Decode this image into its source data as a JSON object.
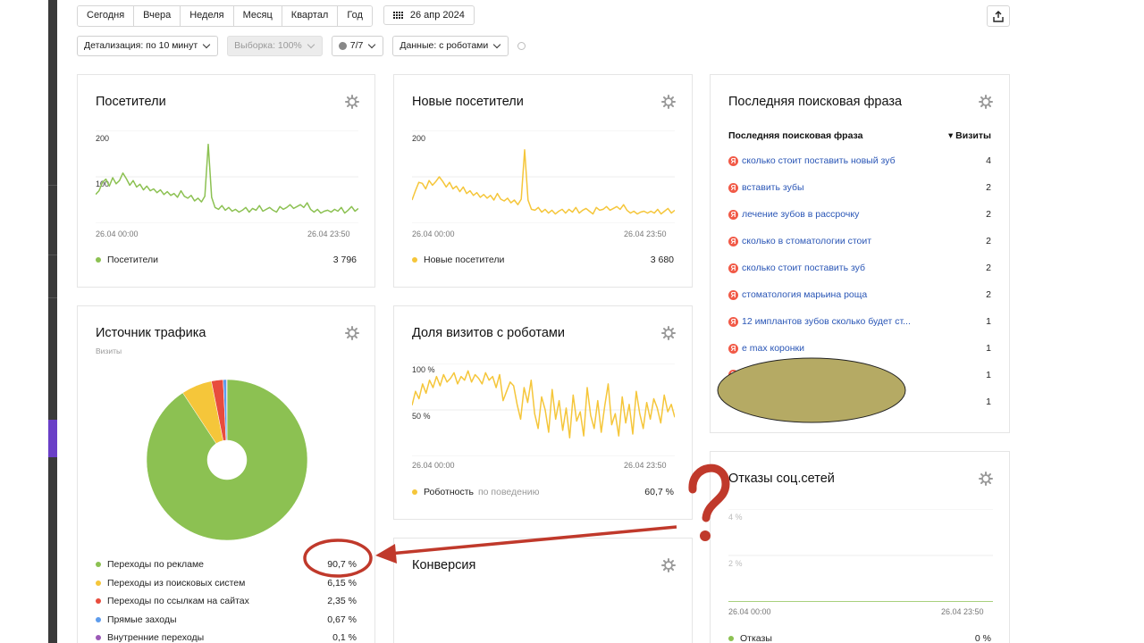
{
  "toolbar": {
    "periods": [
      "Сегодня",
      "Вчера",
      "Неделя",
      "Месяц",
      "Квартал",
      "Год"
    ],
    "date": "26 апр 2024"
  },
  "filters": {
    "detail": "Детализация: по 10 минут",
    "sample": "Выборка: 100%",
    "segments": "7/7",
    "data": "Данные: с роботами"
  },
  "visitors": {
    "title": "Посетители",
    "legend": "Посетители",
    "total": "3 796",
    "color": "#8cc152"
  },
  "new_visitors": {
    "title": "Новые посетители",
    "legend": "Новые посетители",
    "total": "3 680",
    "color": "#f5c63a"
  },
  "search_phrase": {
    "title": "Последняя поисковая фраза",
    "col_phrase": "Последняя поисковая фраза",
    "col_visits": "▾ Визиты",
    "rows": [
      {
        "phrase": "сколько стоит поставить новый зуб",
        "visits": "4"
      },
      {
        "phrase": "вставить зубы",
        "visits": "2"
      },
      {
        "phrase": "лечение зубов в рассрочку",
        "visits": "2"
      },
      {
        "phrase": "сколько в стоматологии стоит",
        "visits": "2"
      },
      {
        "phrase": "сколько стоит поставить зуб",
        "visits": "2"
      },
      {
        "phrase": "стоматология марьина роща",
        "visits": "2"
      },
      {
        "phrase": "12 имплантов зубов сколько будет ст...",
        "visits": "1"
      },
      {
        "phrase": "е max коронки",
        "visits": "1"
      },
      {
        "phrase": "",
        "visits": "1"
      },
      {
        "phrase": "",
        "visits": "1"
      }
    ]
  },
  "traffic": {
    "title": "Источник трафика",
    "subtitle": "Визиты",
    "sources": [
      {
        "label": "Переходы по рекламе",
        "value": "90,7 %",
        "share": 90.7,
        "color": "#8cc152"
      },
      {
        "label": "Переходы из поисковых систем",
        "value": "6,15 %",
        "share": 6.15,
        "color": "#f5c63a"
      },
      {
        "label": "Переходы по ссылкам на сайтах",
        "value": "2,35 %",
        "share": 2.35,
        "color": "#e84c3d"
      },
      {
        "label": "Прямые заходы",
        "value": "0,67 %",
        "share": 0.67,
        "color": "#5d9cec"
      },
      {
        "label": "Внутренние переходы",
        "value": "0,1 %",
        "share": 0.1,
        "color": "#9b59b6"
      }
    ]
  },
  "robots": {
    "title": "Доля визитов с роботами",
    "legend": "Роботность",
    "legend_sub": "по поведению",
    "total": "60,7 %",
    "color": "#f5c63a"
  },
  "conversion": {
    "title": "Конверсия"
  },
  "social": {
    "title": "Отказы соц.сетей",
    "legend": "Отказы",
    "total": "0 %",
    "color": "#8cc152"
  },
  "chart_data": [
    {
      "type": "line",
      "ylabel_ticks": [
        "200",
        "100"
      ],
      "x_ticks": [
        "26.04 00:00",
        "26.04 23:50"
      ],
      "ylim": [
        0,
        200
      ],
      "series": [
        {
          "name": "Посетители",
          "values": [
            62,
            70,
            88,
            95,
            80,
            98,
            85,
            92,
            108,
            96,
            82,
            92,
            78,
            84,
            72,
            80,
            70,
            74,
            66,
            72,
            62,
            68,
            60,
            64,
            56,
            70,
            58,
            54,
            60,
            48,
            54,
            46,
            58,
            170,
            56,
            34,
            30,
            38,
            28,
            34,
            26,
            30,
            24,
            28,
            34,
            24,
            32,
            28,
            38,
            26,
            30,
            34,
            28,
            24,
            36,
            30,
            34,
            40,
            32,
            36,
            40,
            34,
            44,
            30,
            24,
            30,
            22,
            26,
            28,
            24,
            30,
            26,
            34,
            22,
            28,
            36,
            26,
            32
          ]
        }
      ]
    },
    {
      "type": "line",
      "ylabel_ticks": [
        "200"
      ],
      "x_ticks": [
        "26.04 00:00",
        "26.04 23:50"
      ],
      "ylim": [
        0,
        200
      ],
      "series": [
        {
          "name": "Новые посетители",
          "values": [
            50,
            70,
            88,
            86,
            74,
            92,
            82,
            90,
            100,
            90,
            78,
            88,
            74,
            80,
            68,
            78,
            64,
            70,
            60,
            66,
            56,
            62,
            54,
            60,
            50,
            64,
            52,
            48,
            54,
            44,
            50,
            40,
            52,
            158,
            50,
            30,
            28,
            34,
            24,
            30,
            22,
            28,
            20,
            26,
            30,
            22,
            30,
            24,
            34,
            22,
            28,
            32,
            26,
            20,
            34,
            28,
            30,
            36,
            28,
            32,
            36,
            30,
            40,
            28,
            22,
            26,
            20,
            24,
            26,
            22,
            26,
            22,
            30,
            20,
            26,
            32,
            22,
            28
          ]
        }
      ]
    },
    {
      "type": "line",
      "ylabel_ticks": [
        "100 %",
        "50 %"
      ],
      "x_ticks": [
        "26.04 00:00",
        "26.04 23:50"
      ],
      "ylim": [
        0,
        100
      ],
      "series": [
        {
          "name": "Роботность",
          "values": [
            55,
            70,
            62,
            78,
            68,
            82,
            74,
            86,
            76,
            88,
            80,
            84,
            90,
            78,
            86,
            82,
            92,
            80,
            88,
            84,
            78,
            90,
            82,
            86,
            74,
            88,
            60,
            70,
            80,
            76,
            56,
            40,
            74,
            58,
            82,
            46,
            30,
            64,
            50,
            26,
            72,
            40,
            60,
            28,
            52,
            20,
            66,
            38,
            48,
            22,
            74,
            44,
            30,
            60,
            26,
            54,
            78,
            34,
            46,
            22,
            64,
            36,
            56,
            24,
            70,
            46,
            30,
            58,
            40,
            62,
            52,
            36,
            66,
            48,
            56,
            42
          ]
        }
      ]
    },
    {
      "type": "pie",
      "categories": [
        "Переходы по рекламе",
        "Переходы из поисковых систем",
        "Переходы по ссылкам на сайтах",
        "Прямые заходы",
        "Внутренние переходы"
      ],
      "values": [
        90.7,
        6.15,
        2.35,
        0.67,
        0.1
      ]
    },
    {
      "type": "line",
      "ylabel_ticks": [
        "4 %",
        "2 %"
      ],
      "x_ticks": [
        "26.04 00:00",
        "26.04 23:50"
      ],
      "ylim": [
        0,
        5
      ],
      "series": [
        {
          "name": "Отказы",
          "values": [
            0,
            0
          ]
        }
      ]
    }
  ]
}
